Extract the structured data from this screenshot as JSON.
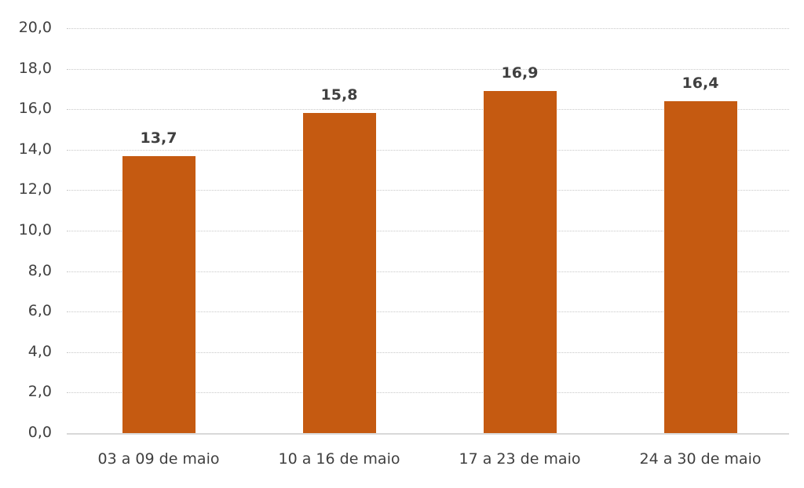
{
  "chart_data": {
    "type": "bar",
    "title": "",
    "xlabel": "",
    "ylabel": "",
    "categories": [
      "03 a 09 de maio",
      "10 a 16 de maio",
      "17 a 23 de maio",
      "24 a 30 de maio"
    ],
    "values": [
      13.7,
      15.8,
      16.9,
      16.4
    ],
    "value_labels": [
      "13,7",
      "15,8",
      "16,9",
      "16,4"
    ],
    "ylim": [
      0,
      20
    ],
    "yticks": [
      0,
      2,
      4,
      6,
      8,
      10,
      12,
      14,
      16,
      18,
      20
    ],
    "ytick_labels": [
      "0,0",
      "2,0",
      "4,0",
      "6,0",
      "8,0",
      "10,0",
      "12,0",
      "14,0",
      "16,0",
      "18,0",
      "20,0"
    ],
    "grid": true,
    "legend": null,
    "bar_color": "#C55A11"
  }
}
